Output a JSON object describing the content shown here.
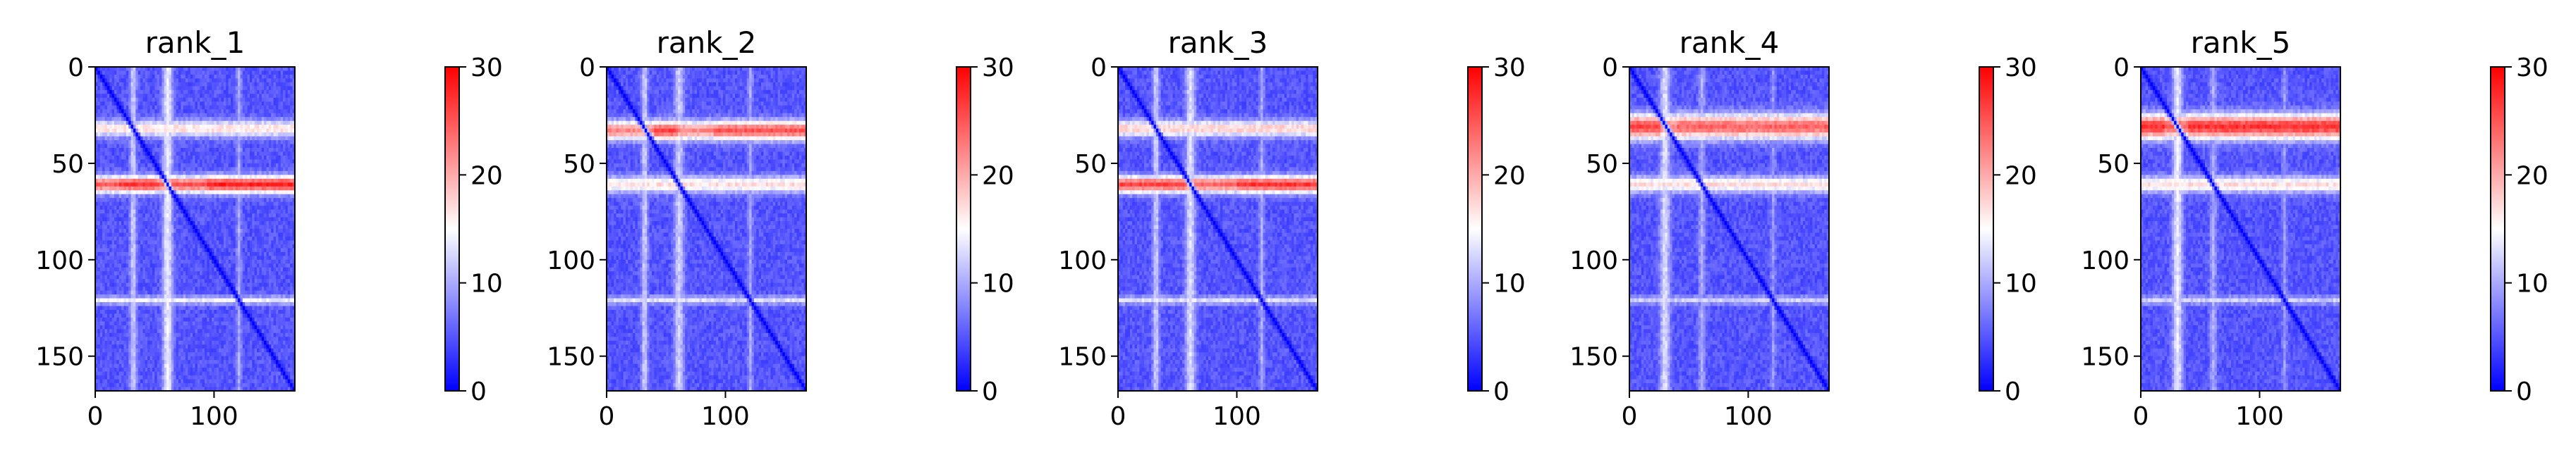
{
  "chart_data": [
    {
      "type": "heatmap",
      "title": "rank_1",
      "matrix_size": 168,
      "xlim": [
        0,
        168
      ],
      "ylim": [
        168,
        0
      ],
      "xticks": [
        0,
        100
      ],
      "yticks": [
        0,
        50,
        100,
        150
      ],
      "xtick_labels": [
        "0",
        "100"
      ],
      "ytick_labels": [
        "0",
        "50",
        "100",
        "150"
      ],
      "colorbar": {
        "range": [
          0,
          30
        ],
        "ticks": [
          0,
          10,
          20,
          30
        ],
        "tick_labels": [
          "0",
          "10",
          "20",
          "30"
        ]
      },
      "colormap": "bwr",
      "features": {
        "base_value": 5,
        "diagonal_value": 0,
        "bands": [
          {
            "center": 32,
            "half_width": 3,
            "peak": 17
          },
          {
            "center": 61,
            "half_width": 3,
            "peak": 25
          },
          {
            "center": 121,
            "half_width": 1.5,
            "peak": 14
          }
        ],
        "hot_regions": [
          {
            "band": 61,
            "from": 20,
            "to": 50,
            "peak": 27
          },
          {
            "band": 61,
            "from": 95,
            "to": 168,
            "peak": 28
          }
        ],
        "stripes": [
          {
            "column": 32,
            "half_width": 2,
            "peak": 12
          },
          {
            "column": 61,
            "half_width": 3,
            "peak": 14
          },
          {
            "column": 121,
            "half_width": 1.5,
            "peak": 10
          }
        ]
      }
    },
    {
      "type": "heatmap",
      "title": "rank_2",
      "matrix_size": 168,
      "xlim": [
        0,
        168
      ],
      "ylim": [
        168,
        0
      ],
      "xticks": [
        0,
        100
      ],
      "yticks": [
        0,
        50,
        100,
        150
      ],
      "xtick_labels": [
        "0",
        "100"
      ],
      "ytick_labels": [
        "0",
        "50",
        "100",
        "150"
      ],
      "colorbar": {
        "range": [
          0,
          30
        ],
        "ticks": [
          0,
          10,
          20,
          30
        ],
        "tick_labels": [
          "0",
          "10",
          "20",
          "30"
        ]
      },
      "colormap": "bwr",
      "features": {
        "base_value": 5,
        "diagonal_value": 0,
        "bands": [
          {
            "center": 33,
            "half_width": 3.5,
            "peak": 22
          },
          {
            "center": 61,
            "half_width": 3,
            "peak": 17
          },
          {
            "center": 121,
            "half_width": 1.5,
            "peak": 13
          }
        ],
        "hot_regions": [
          {
            "band": 33,
            "from": 40,
            "to": 60,
            "peak": 26
          },
          {
            "band": 33,
            "from": 90,
            "to": 168,
            "peak": 25
          }
        ],
        "stripes": [
          {
            "column": 32,
            "half_width": 2,
            "peak": 12
          },
          {
            "column": 61,
            "half_width": 3,
            "peak": 12
          },
          {
            "column": 121,
            "half_width": 1.5,
            "peak": 10
          }
        ]
      }
    },
    {
      "type": "heatmap",
      "title": "rank_3",
      "matrix_size": 168,
      "xlim": [
        0,
        168
      ],
      "ylim": [
        168,
        0
      ],
      "xticks": [
        0,
        100
      ],
      "yticks": [
        0,
        50,
        100,
        150
      ],
      "xtick_labels": [
        "0",
        "100"
      ],
      "ytick_labels": [
        "0",
        "50",
        "100",
        "150"
      ],
      "colorbar": {
        "range": [
          0,
          30
        ],
        "ticks": [
          0,
          10,
          20,
          30
        ],
        "tick_labels": [
          "0",
          "10",
          "20",
          "30"
        ]
      },
      "colormap": "bwr",
      "features": {
        "base_value": 5,
        "diagonal_value": 0,
        "bands": [
          {
            "center": 32,
            "half_width": 3,
            "peak": 18
          },
          {
            "center": 61,
            "half_width": 3,
            "peak": 24
          },
          {
            "center": 121,
            "half_width": 1.5,
            "peak": 13
          }
        ],
        "hot_regions": [
          {
            "band": 61,
            "from": 0,
            "to": 55,
            "peak": 26
          },
          {
            "band": 61,
            "from": 100,
            "to": 168,
            "peak": 27
          }
        ],
        "stripes": [
          {
            "column": 32,
            "half_width": 2,
            "peak": 12
          },
          {
            "column": 61,
            "half_width": 3,
            "peak": 13
          },
          {
            "column": 121,
            "half_width": 1.5,
            "peak": 10
          }
        ]
      }
    },
    {
      "type": "heatmap",
      "title": "rank_4",
      "matrix_size": 168,
      "xlim": [
        0,
        168
      ],
      "ylim": [
        168,
        0
      ],
      "xticks": [
        0,
        100
      ],
      "yticks": [
        0,
        50,
        100,
        150
      ],
      "xtick_labels": [
        "0",
        "100"
      ],
      "ytick_labels": [
        "0",
        "50",
        "100",
        "150"
      ],
      "colorbar": {
        "range": [
          0,
          30
        ],
        "ticks": [
          0,
          10,
          20,
          30
        ],
        "tick_labels": [
          "0",
          "10",
          "20",
          "30"
        ]
      },
      "colormap": "bwr",
      "features": {
        "base_value": 5,
        "diagonal_value": 0,
        "bands": [
          {
            "center": 31,
            "half_width": 4.5,
            "peak": 22
          },
          {
            "center": 61,
            "half_width": 3,
            "peak": 17
          },
          {
            "center": 121,
            "half_width": 1.5,
            "peak": 12
          }
        ],
        "hot_regions": [
          {
            "band": 31,
            "from": 0,
            "to": 25,
            "peak": 26
          },
          {
            "band": 31,
            "from": 40,
            "to": 168,
            "peak": 24
          }
        ],
        "stripes": [
          {
            "column": 30,
            "half_width": 3,
            "peak": 13
          },
          {
            "column": 61,
            "half_width": 2,
            "peak": 10
          },
          {
            "column": 121,
            "half_width": 1.5,
            "peak": 9
          }
        ]
      }
    },
    {
      "type": "heatmap",
      "title": "rank_5",
      "matrix_size": 168,
      "xlim": [
        0,
        168
      ],
      "ylim": [
        168,
        0
      ],
      "xticks": [
        0,
        100
      ],
      "yticks": [
        0,
        50,
        100,
        150
      ],
      "xtick_labels": [
        "0",
        "100"
      ],
      "ytick_labels": [
        "0",
        "50",
        "100",
        "150"
      ],
      "colorbar": {
        "range": [
          0,
          30
        ],
        "ticks": [
          0,
          10,
          20,
          30
        ],
        "tick_labels": [
          "0",
          "10",
          "20",
          "30"
        ]
      },
      "colormap": "bwr",
      "features": {
        "base_value": 5,
        "diagonal_value": 0,
        "bands": [
          {
            "center": 31,
            "half_width": 4.5,
            "peak": 24
          },
          {
            "center": 61,
            "half_width": 3,
            "peak": 17
          },
          {
            "center": 121,
            "half_width": 1.5,
            "peak": 12
          }
        ],
        "hot_regions": [
          {
            "band": 31,
            "from": 0,
            "to": 20,
            "peak": 27
          },
          {
            "band": 31,
            "from": 40,
            "to": 168,
            "peak": 27
          }
        ],
        "stripes": [
          {
            "column": 31,
            "half_width": 3,
            "peak": 14
          },
          {
            "column": 61,
            "half_width": 2,
            "peak": 10
          },
          {
            "column": 121,
            "half_width": 1.5,
            "peak": 9
          }
        ]
      }
    }
  ]
}
